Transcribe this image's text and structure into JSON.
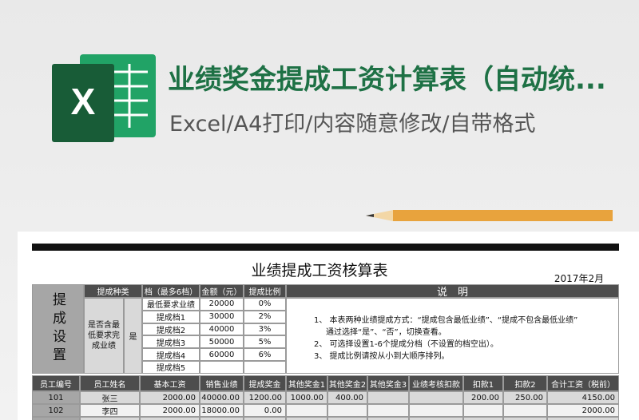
{
  "header": {
    "icon_letter": "X",
    "title": "业绩奖金提成工资计算表（自动统...",
    "subtitle": "Excel/A4打印/内容随意修改/自带格式"
  },
  "sheet": {
    "title": "业绩提成工资核算表",
    "date": "2017年2月",
    "settings_label": "提成设置",
    "settings_header": [
      "提成种类",
      "档（最多6档）",
      "金额（元）",
      "提成比例"
    ],
    "includes_min": "是否含最低要求完成业绩",
    "includes_min_value": "是",
    "tiers": [
      [
        "最低要求业绩",
        "20000",
        "0%"
      ],
      [
        "提成档1",
        "30000",
        "2%"
      ],
      [
        "提成档2",
        "40000",
        "3%"
      ],
      [
        "提成档3",
        "50000",
        "5%"
      ],
      [
        "提成档4",
        "60000",
        "6%"
      ],
      [
        "提成档5"
      ]
    ],
    "notes_title": "说　明",
    "notes": [
      "1、 本表两种业绩提成方式：“提成包含最低业绩”、“提成不包含最低业绩”",
      "通过选择“是”、“否”，切换查看。",
      "2、 可选择设置1-6个提成分档（不设置的档空出）。",
      "3、 提成比例请按从小到大顺序排列。"
    ],
    "columns": [
      "员工编号",
      "员工姓名",
      "基本工资",
      "销售业绩",
      "提成奖金",
      "其他奖金1",
      "其他奖金2",
      "其他奖金3",
      "业绩考核扣款",
      "扣款1",
      "扣款2",
      "合计工资（税前）"
    ],
    "rows": [
      [
        "101",
        "张三",
        "2000.00",
        "40000.00",
        "1200.00",
        "1000.00",
        "400.00",
        null,
        null,
        "200.00",
        "250.00",
        "4150.00"
      ],
      [
        "102",
        "李四",
        "2000.00",
        "18000.00",
        "0.00",
        null,
        null,
        null,
        null,
        null,
        null,
        "2000.00"
      ]
    ]
  }
}
